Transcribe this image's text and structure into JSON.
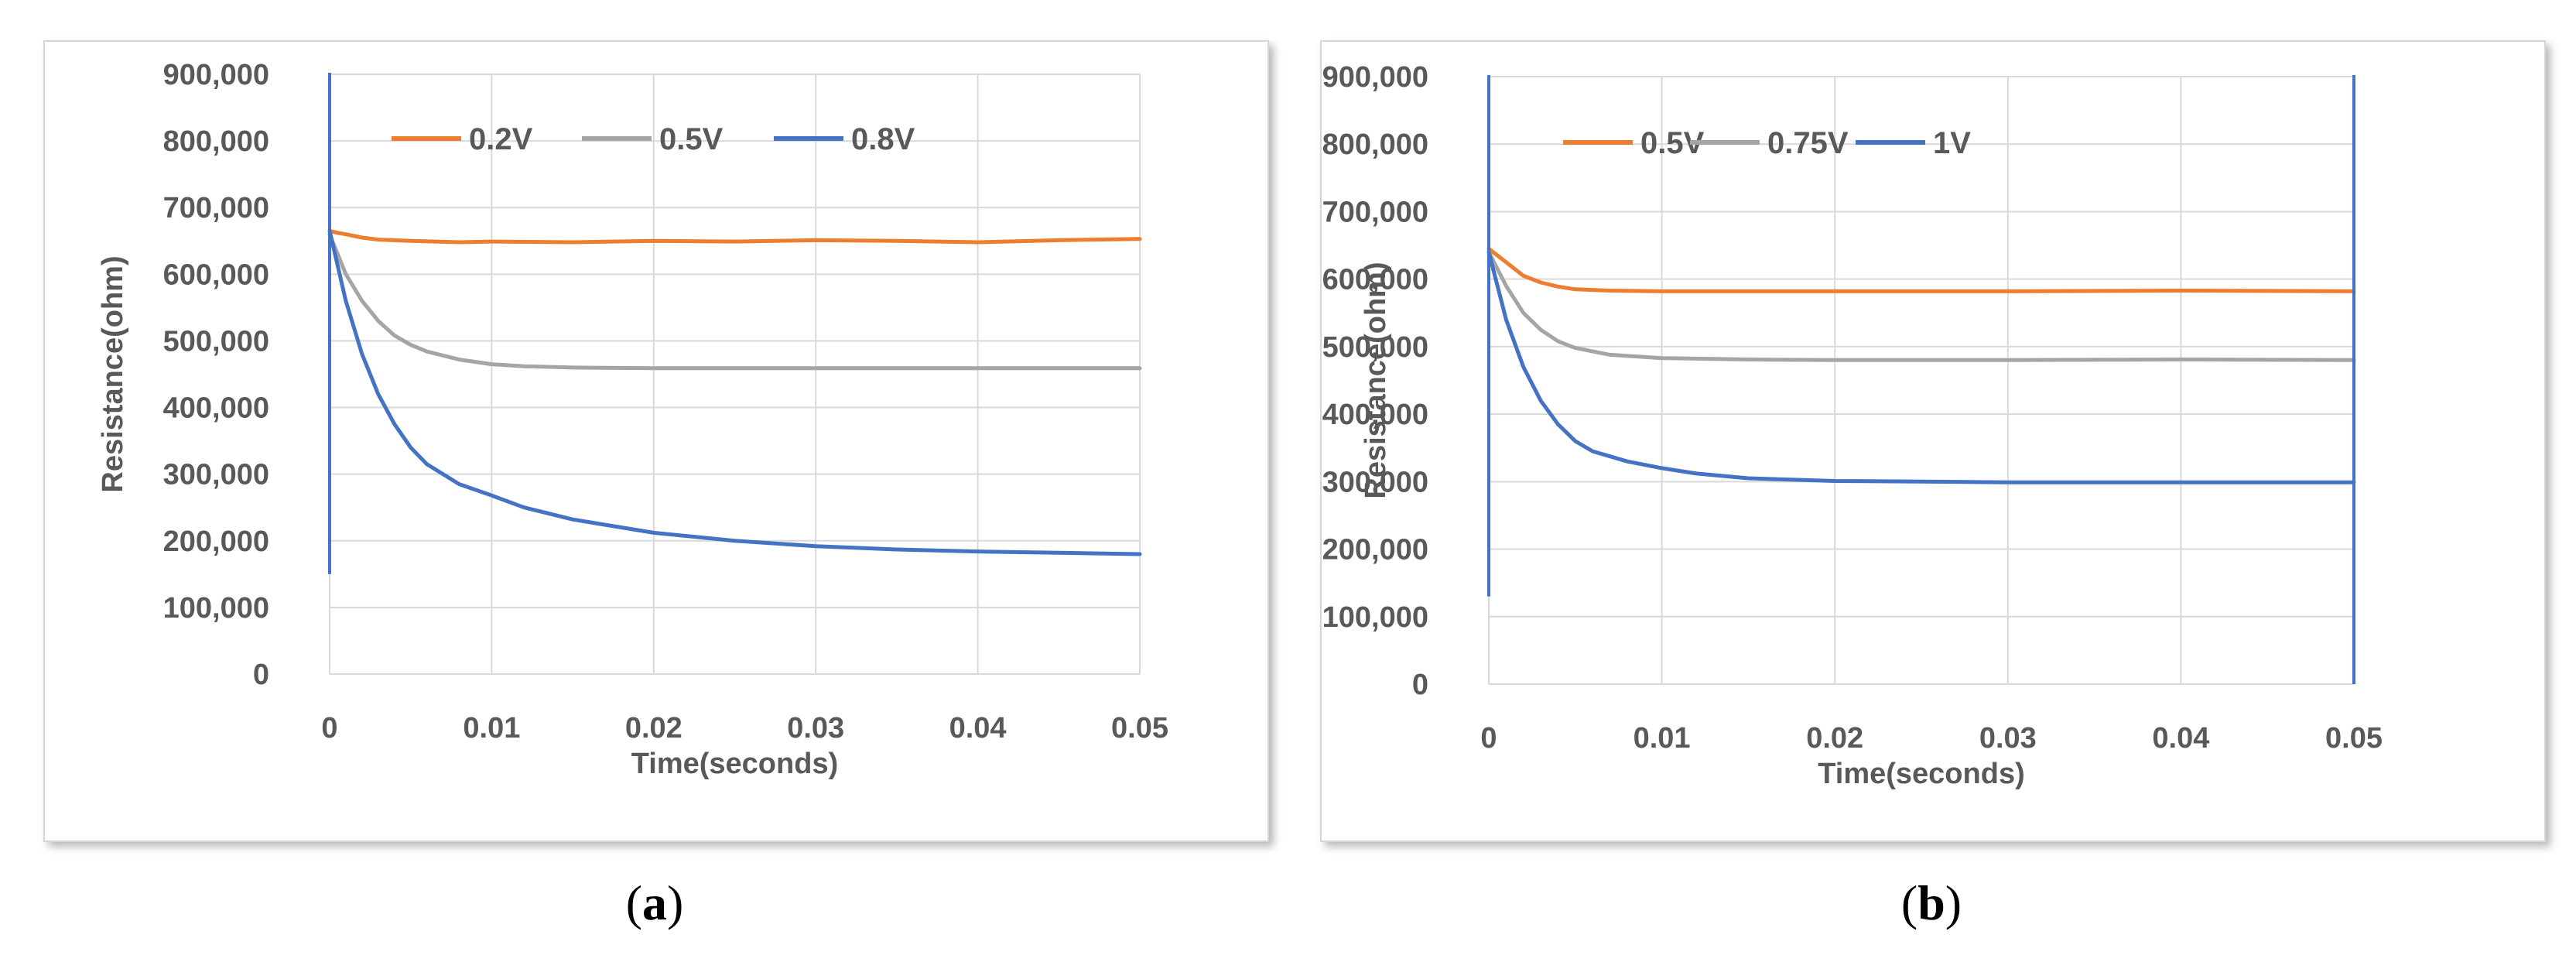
{
  "chart_data": [
    {
      "type": "line",
      "caption_letter": "a",
      "xlabel": "Time(seconds)",
      "ylabel": "Resistance(ohm)",
      "xlim": [
        0,
        0.05
      ],
      "ylim": [
        0,
        900000
      ],
      "x_ticks": [
        "0",
        "0.01",
        "0.02",
        "0.03",
        "0.04",
        "0.05"
      ],
      "y_ticks": [
        "0",
        "100,000",
        "200,000",
        "300,000",
        "400,000",
        "500,000",
        "600,000",
        "700,000",
        "800,000",
        "900,000"
      ],
      "grid": true,
      "legend_position": "top",
      "series": [
        {
          "name": "0.2V",
          "color": "#ED7D31",
          "points": [
            [
              0,
              665000
            ],
            [
              0.0005,
              662000
            ],
            [
              0.001,
              660000
            ],
            [
              0.002,
              655000
            ],
            [
              0.003,
              652000
            ],
            [
              0.005,
              650000
            ],
            [
              0.008,
              648000
            ],
            [
              0.01,
              649000
            ],
            [
              0.015,
              648000
            ],
            [
              0.02,
              650000
            ],
            [
              0.025,
              649000
            ],
            [
              0.03,
              651000
            ],
            [
              0.035,
              650000
            ],
            [
              0.04,
              648000
            ],
            [
              0.045,
              651000
            ],
            [
              0.05,
              653000
            ]
          ]
        },
        {
          "name": "0.5V",
          "color": "#A5A5A5",
          "points": [
            [
              0,
              660000
            ],
            [
              0.001,
              600000
            ],
            [
              0.002,
              560000
            ],
            [
              0.003,
              530000
            ],
            [
              0.004,
              508000
            ],
            [
              0.005,
              494000
            ],
            [
              0.006,
              484000
            ],
            [
              0.008,
              472000
            ],
            [
              0.01,
              465000
            ],
            [
              0.012,
              462000
            ],
            [
              0.015,
              460000
            ],
            [
              0.02,
              459000
            ],
            [
              0.03,
              459000
            ],
            [
              0.04,
              459000
            ],
            [
              0.05,
              459000
            ]
          ]
        },
        {
          "name": "0.8V",
          "color": "#4472C4",
          "points": [
            [
              0,
              665000
            ],
            [
              0.001,
              560000
            ],
            [
              0.002,
              480000
            ],
            [
              0.003,
              420000
            ],
            [
              0.004,
              375000
            ],
            [
              0.005,
              340000
            ],
            [
              0.006,
              315000
            ],
            [
              0.008,
              285000
            ],
            [
              0.01,
              268000
            ],
            [
              0.012,
              250000
            ],
            [
              0.015,
              232000
            ],
            [
              0.02,
              212000
            ],
            [
              0.025,
              200000
            ],
            [
              0.03,
              192000
            ],
            [
              0.035,
              187000
            ],
            [
              0.04,
              184000
            ],
            [
              0.045,
              182000
            ],
            [
              0.05,
              180000
            ]
          ]
        }
      ]
    },
    {
      "type": "line",
      "caption_letter": "b",
      "xlabel": "Time(seconds)",
      "ylabel": "Resistance(ohm)",
      "xlim": [
        0,
        0.05
      ],
      "ylim": [
        0,
        900000
      ],
      "x_ticks": [
        "0",
        "0.01",
        "0.02",
        "0.03",
        "0.04",
        "0.05"
      ],
      "y_ticks": [
        "0",
        "100,000",
        "200,000",
        "300,000",
        "400,000",
        "500,000",
        "600,000",
        "700,000",
        "800,000",
        "900,000"
      ],
      "grid": true,
      "legend_position": "top",
      "series": [
        {
          "name": "0.5V",
          "color": "#ED7D31",
          "points": [
            [
              0,
              645000
            ],
            [
              0.001,
              625000
            ],
            [
              0.002,
              605000
            ],
            [
              0.003,
              595000
            ],
            [
              0.004,
              589000
            ],
            [
              0.005,
              585000
            ],
            [
              0.007,
              583000
            ],
            [
              0.01,
              582000
            ],
            [
              0.02,
              582000
            ],
            [
              0.03,
              582000
            ],
            [
              0.04,
              583000
            ],
            [
              0.05,
              582000
            ]
          ]
        },
        {
          "name": "0.75V",
          "color": "#A5A5A5",
          "points": [
            [
              0,
              640000
            ],
            [
              0.001,
              590000
            ],
            [
              0.002,
              550000
            ],
            [
              0.003,
              525000
            ],
            [
              0.004,
              508000
            ],
            [
              0.005,
              498000
            ],
            [
              0.007,
              488000
            ],
            [
              0.01,
              483000
            ],
            [
              0.015,
              481000
            ],
            [
              0.02,
              480000
            ],
            [
              0.03,
              480000
            ],
            [
              0.04,
              481000
            ],
            [
              0.05,
              480000
            ]
          ]
        },
        {
          "name": "1V",
          "color": "#4472C4",
          "points": [
            [
              0,
              640000
            ],
            [
              0.001,
              540000
            ],
            [
              0.002,
              470000
            ],
            [
              0.003,
              420000
            ],
            [
              0.004,
              385000
            ],
            [
              0.005,
              360000
            ],
            [
              0.006,
              345000
            ],
            [
              0.008,
              330000
            ],
            [
              0.01,
              320000
            ],
            [
              0.012,
              312000
            ],
            [
              0.015,
              305000
            ],
            [
              0.02,
              301000
            ],
            [
              0.025,
              300000
            ],
            [
              0.03,
              299000
            ],
            [
              0.04,
              299000
            ],
            [
              0.05,
              299000
            ]
          ]
        }
      ]
    }
  ]
}
